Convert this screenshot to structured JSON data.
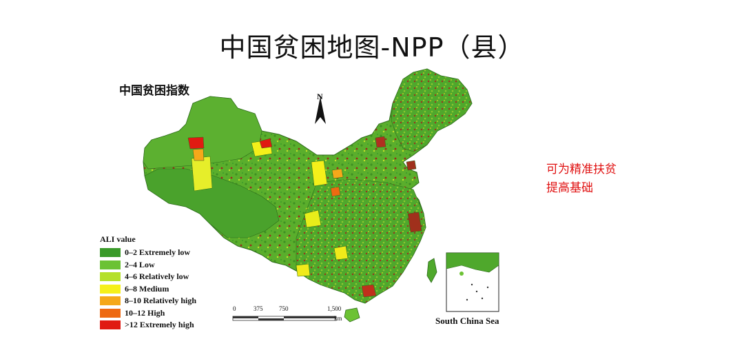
{
  "title": "中国贫困地图-NPP（县）",
  "map": {
    "subtitle": "中国贫困指数",
    "north_label": "N",
    "inset_label": "South China Sea"
  },
  "legend": {
    "title": "ALI value",
    "items": [
      {
        "label": "0–2 Extremely low",
        "color": "#3a9a2a"
      },
      {
        "label": "2–4 Low",
        "color": "#6cc234"
      },
      {
        "label": "4–6 Relatively low",
        "color": "#b5e02a"
      },
      {
        "label": "6–8 Medium",
        "color": "#f5f01a"
      },
      {
        "label": "8–10 Relatively high",
        "color": "#f5a81a"
      },
      {
        "label": "10–12 High",
        "color": "#ee6a12"
      },
      {
        "label": ">12 Extremely high",
        "color": "#e01a12"
      }
    ]
  },
  "scale": {
    "ticks": [
      "0",
      "375",
      "750",
      "1,500"
    ],
    "unit": "km"
  },
  "note": {
    "line1": "可为精准扶贫",
    "line2": "提高基础"
  }
}
